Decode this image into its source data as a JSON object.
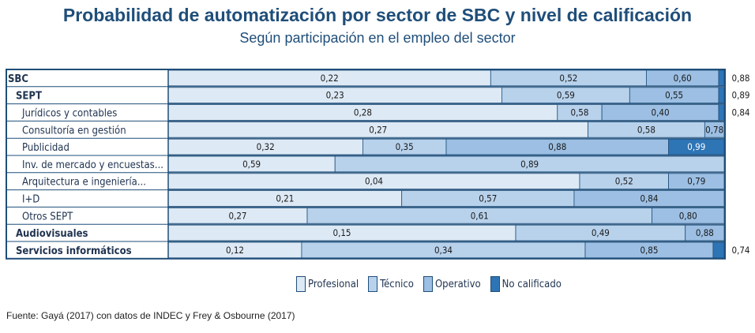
{
  "header": {
    "title": "Probabilidad de automatización por sector de SBC y nivel de calificación",
    "subtitle": "Según participación en el empleo del sector"
  },
  "chart_data": {
    "type": "bar",
    "orientation": "horizontal",
    "stacked": true,
    "series_names": [
      "Profesional",
      "Técnico",
      "Operativo",
      "No calificado"
    ],
    "colors": [
      "#dde9f5",
      "#b8d2ec",
      "#9cbfe3",
      "#2e75b6"
    ],
    "rows": [
      {
        "label": "SBC",
        "level": 0,
        "bold": true,
        "shares": [
          0.58,
          0.28,
          0.13,
          0.01
        ],
        "labels": [
          "0,22",
          "0,52",
          "0,60",
          "0,88"
        ]
      },
      {
        "label": "SEPT",
        "level": 1,
        "bold": true,
        "shares": [
          0.6,
          0.23,
          0.16,
          0.01
        ],
        "labels": [
          "0,23",
          "0,59",
          "0,55",
          "0,89"
        ]
      },
      {
        "label": "Jurídicos y contables",
        "level": 2,
        "bold": false,
        "shares": [
          0.7,
          0.08,
          0.21,
          0.01
        ],
        "labels": [
          "0,28",
          "0,58",
          "0,40",
          "0,84"
        ]
      },
      {
        "label": "Consultoría en gestión",
        "level": 2,
        "bold": false,
        "shares": [
          0.755,
          0.21,
          0.035,
          0
        ],
        "labels": [
          "0,27",
          "0,58",
          "0,78",
          ""
        ]
      },
      {
        "label": "Publicidad",
        "level": 2,
        "bold": false,
        "shares": [
          0.35,
          0.15,
          0.4,
          0.1
        ],
        "labels": [
          "0,32",
          "0,35",
          "0,88",
          "0,99"
        ]
      },
      {
        "label": "Inv. de mercado y encuestas...",
        "level": 2,
        "bold": false,
        "shares": [
          0.3,
          0.7,
          0,
          0
        ],
        "labels": [
          "0,59",
          "0,89",
          "",
          ""
        ]
      },
      {
        "label": "Arquitectura e ingeniería...",
        "level": 2,
        "bold": false,
        "shares": [
          0.74,
          0.16,
          0.1,
          0
        ],
        "labels": [
          "0,04",
          "0,52",
          "0,79",
          ""
        ]
      },
      {
        "label": "I+D",
        "level": 2,
        "bold": false,
        "shares": [
          0.42,
          0.31,
          0.27,
          0
        ],
        "labels": [
          "0,21",
          "0,57",
          "0,84",
          ""
        ]
      },
      {
        "label": "Otros SEPT",
        "level": 2,
        "bold": false,
        "shares": [
          0.25,
          0.62,
          0.13,
          0
        ],
        "labels": [
          "0,27",
          "0,61",
          "0,80",
          ""
        ]
      },
      {
        "label": "Audiovisuales",
        "level": 1,
        "bold": true,
        "shares": [
          0.625,
          0.305,
          0.07,
          0
        ],
        "labels": [
          "0,15",
          "0,49",
          "0,88",
          ""
        ]
      },
      {
        "label": "Servicios informáticos",
        "level": 1,
        "bold": true,
        "shares": [
          0.24,
          0.51,
          0.23,
          0.02
        ],
        "labels": [
          "0,12",
          "0,34",
          "0,85",
          "0,74"
        ]
      }
    ]
  },
  "legend": {
    "items": [
      {
        "label": "Profesional",
        "color": "#dde9f5"
      },
      {
        "label": "Técnico",
        "color": "#b8d2ec"
      },
      {
        "label": "Operativo",
        "color": "#9cbfe3"
      },
      {
        "label": "No calificado",
        "color": "#2e75b6"
      }
    ]
  },
  "footer": {
    "source": "Fuente: Gayá (2017) con datos de INDEC y Frey & Osbourne (2017)"
  }
}
